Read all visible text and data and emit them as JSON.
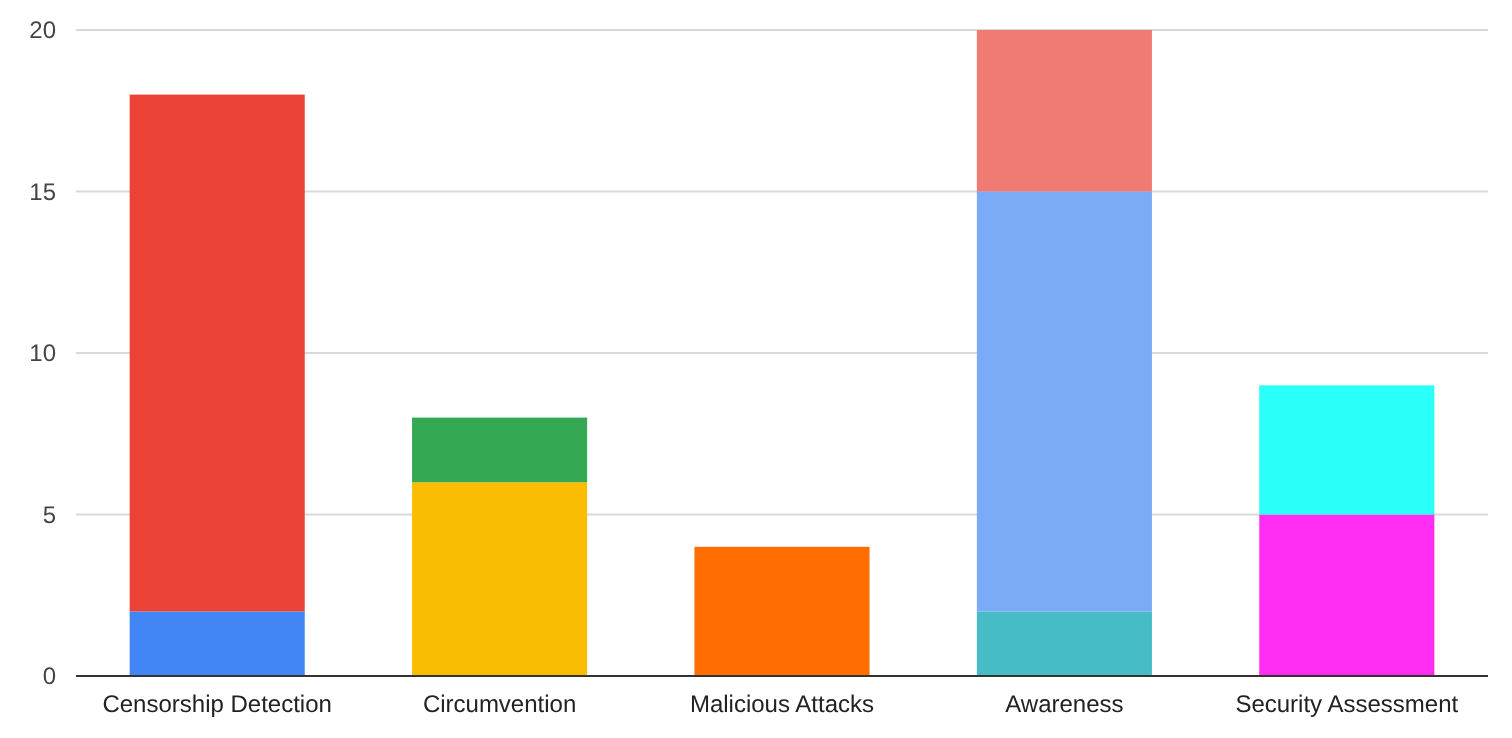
{
  "chart_data": {
    "type": "bar",
    "stacked": true,
    "categories": [
      "Censorship Detection",
      "Circumvention",
      "Malicious Attacks",
      "Awareness",
      "Security Assessment"
    ],
    "series": [
      {
        "values": [
          2,
          6,
          4,
          2,
          5
        ],
        "colors": [
          "#4285f4",
          "#fbbc04",
          "#ff6d01",
          "#46bdc6",
          "#ff2cf2"
        ]
      },
      {
        "values": [
          16,
          2,
          null,
          13,
          4
        ],
        "colors": [
          "#ea4335",
          "#34a853",
          null,
          "#7baaf7",
          "#2bfffa"
        ]
      },
      {
        "values": [
          null,
          null,
          null,
          5,
          null
        ],
        "colors": [
          null,
          null,
          null,
          "#f07b72",
          null
        ]
      }
    ],
    "ylim": [
      0,
      20
    ],
    "yticks": [
      0,
      5,
      10,
      15,
      20
    ],
    "grid": "y"
  }
}
